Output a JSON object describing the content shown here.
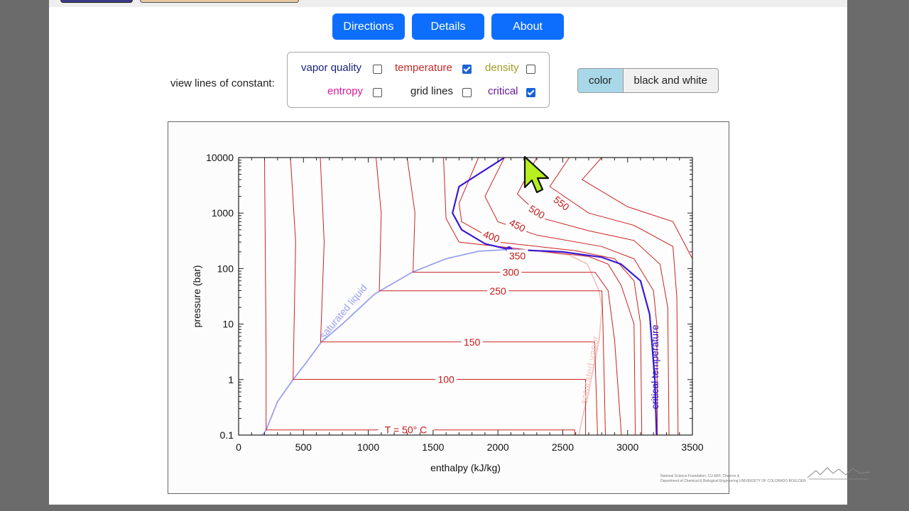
{
  "nav": {
    "directions": "Directions",
    "details": "Details",
    "about": "About"
  },
  "view_label": "view lines of constant:",
  "options": {
    "vapor_quality": {
      "label": "vapor quality",
      "checked": false,
      "color": "#1a237e"
    },
    "temperature": {
      "label": "temperature",
      "checked": true,
      "color": "#c62828"
    },
    "density": {
      "label": "density",
      "checked": false,
      "color": "#9e9d24"
    },
    "entropy": {
      "label": "entropy",
      "checked": false,
      "color": "#d81b9c"
    },
    "grid_lines": {
      "label": "grid lines",
      "checked": false,
      "color": "#222222"
    },
    "critical": {
      "label": "critical",
      "checked": true,
      "color": "#6a1b9a"
    }
  },
  "color_mode": {
    "color": "color",
    "bw": "black and white",
    "selected": "color"
  },
  "credit": {
    "line1": "National Science Foundation, CU-EEF, Chevron &",
    "line2": "Department of Chemical & Biological Engineering  UNIVERSITY OF COLORADO BOULDER"
  },
  "chart_data": {
    "type": "line",
    "xlabel": "enthalpy (kJ/kg)",
    "ylabel": "pressure (bar)",
    "xlim": [
      0,
      3500
    ],
    "ylim": [
      0.1,
      10000
    ],
    "y_scale": "log",
    "x_ticks": [
      "0",
      "500",
      "1000",
      "1500",
      "2000",
      "2500",
      "3000",
      "3500"
    ],
    "y_ticks": [
      "0.1",
      "1",
      "10",
      "100",
      "1000",
      "10000"
    ],
    "saturation": {
      "liquid_label": "saturated liquid",
      "vapor_label": "saturated vapor",
      "liquid": [
        [
          110,
          0.06
        ],
        [
          210,
          0.12
        ],
        [
          300,
          0.4
        ],
        [
          420,
          1
        ],
        [
          520,
          2
        ],
        [
          640,
          4.8
        ],
        [
          800,
          10
        ],
        [
          1050,
          35
        ],
        [
          1340,
          86
        ],
        [
          1600,
          150
        ],
        [
          1850,
          205
        ],
        [
          2086,
          220.6
        ]
      ],
      "vapor": [
        [
          2086,
          220.6
        ],
        [
          2300,
          205
        ],
        [
          2550,
          175
        ],
        [
          2690,
          120
        ],
        [
          2780,
          40
        ],
        [
          2803,
          20
        ],
        [
          2780,
          5
        ],
        [
          2700,
          0.6
        ],
        [
          2650,
          0.2
        ],
        [
          2600,
          0.05
        ]
      ]
    },
    "critical_point": {
      "h": 2086,
      "p": 220.6
    },
    "critical_label": "critical temperature",
    "isotherms": [
      {
        "label": "T = 50° C",
        "points": [
          [
            200,
            10000
          ],
          [
            212,
            3
          ],
          [
            212,
            0.124
          ],
          [
            2592,
            0.124
          ],
          [
            2592,
            0.08
          ]
        ]
      },
      {
        "label": "100",
        "points": [
          [
            400,
            10000
          ],
          [
            440,
            300
          ],
          [
            420,
            1.01
          ],
          [
            2676,
            1.01
          ],
          [
            2676,
            0.08
          ]
        ]
      },
      {
        "label": "150",
        "points": [
          [
            630,
            10000
          ],
          [
            660,
            300
          ],
          [
            632,
            4.76
          ],
          [
            2746,
            4.76
          ],
          [
            2770,
            0.08
          ]
        ]
      },
      {
        "label": "250",
        "points": [
          [
            1060,
            10000
          ],
          [
            1100,
            1000
          ],
          [
            1085,
            39.7
          ],
          [
            2802,
            39.7
          ],
          [
            2810,
            10
          ],
          [
            2830,
            0.08
          ]
        ]
      },
      {
        "label": "300",
        "points": [
          [
            1300,
            10000
          ],
          [
            1360,
            1000
          ],
          [
            1345,
            85.9
          ],
          [
            2749,
            85.9
          ],
          [
            2850,
            40
          ],
          [
            2900,
            5
          ],
          [
            2955,
            0.08
          ]
        ]
      },
      {
        "label": "350",
        "points": [
          [
            1580,
            10000
          ],
          [
            1600,
            800
          ],
          [
            1700,
            300
          ],
          [
            2700,
            165
          ],
          [
            2850,
            120
          ],
          [
            2950,
            50
          ],
          [
            3050,
            10
          ],
          [
            3060,
            0.08
          ]
        ]
      },
      {
        "label": "400",
        "points": [
          [
            1850,
            10000
          ],
          [
            1700,
            1500
          ],
          [
            1720,
            700
          ],
          [
            2000,
            300
          ],
          [
            2600,
            210
          ],
          [
            2900,
            150
          ],
          [
            3050,
            60
          ],
          [
            3100,
            10
          ],
          [
            3110,
            0.08
          ]
        ]
      },
      {
        "label": "450",
        "points": [
          [
            2050,
            10000
          ],
          [
            1900,
            2000
          ],
          [
            2000,
            700
          ],
          [
            2300,
            400
          ],
          [
            2800,
            250
          ],
          [
            3050,
            150
          ],
          [
            3200,
            40
          ],
          [
            3225,
            10
          ],
          [
            3230,
            0.08
          ]
        ]
      },
      {
        "label": "500",
        "points": [
          [
            2300,
            10000
          ],
          [
            2150,
            2200
          ],
          [
            2350,
            800
          ],
          [
            2700,
            480
          ],
          [
            3050,
            320
          ],
          [
            3250,
            120
          ],
          [
            3310,
            20
          ],
          [
            3320,
            0.08
          ]
        ]
      },
      {
        "label": "550",
        "points": [
          [
            2550,
            10000
          ],
          [
            2400,
            3000
          ],
          [
            2700,
            1000
          ],
          [
            3050,
            600
          ],
          [
            3350,
            250
          ],
          [
            3380,
            30
          ],
          [
            3390,
            0.08
          ]
        ]
      },
      {
        "label": "",
        "points": [
          [
            2800,
            10000
          ],
          [
            2650,
            4000
          ],
          [
            3000,
            1300
          ],
          [
            3350,
            700
          ],
          [
            3500,
            150
          ]
        ]
      }
    ],
    "critical_isotherm": [
      [
        2050,
        10000
      ],
      [
        1700,
        3000
      ],
      [
        1650,
        1000
      ],
      [
        1720,
        500
      ],
      [
        1900,
        280
      ],
      [
        2086,
        220.6
      ],
      [
        2500,
        200
      ],
      [
        2800,
        160
      ],
      [
        2950,
        120
      ],
      [
        3100,
        60
      ],
      [
        3170,
        15
      ],
      [
        3210,
        1
      ],
      [
        3225,
        0.08
      ]
    ]
  }
}
